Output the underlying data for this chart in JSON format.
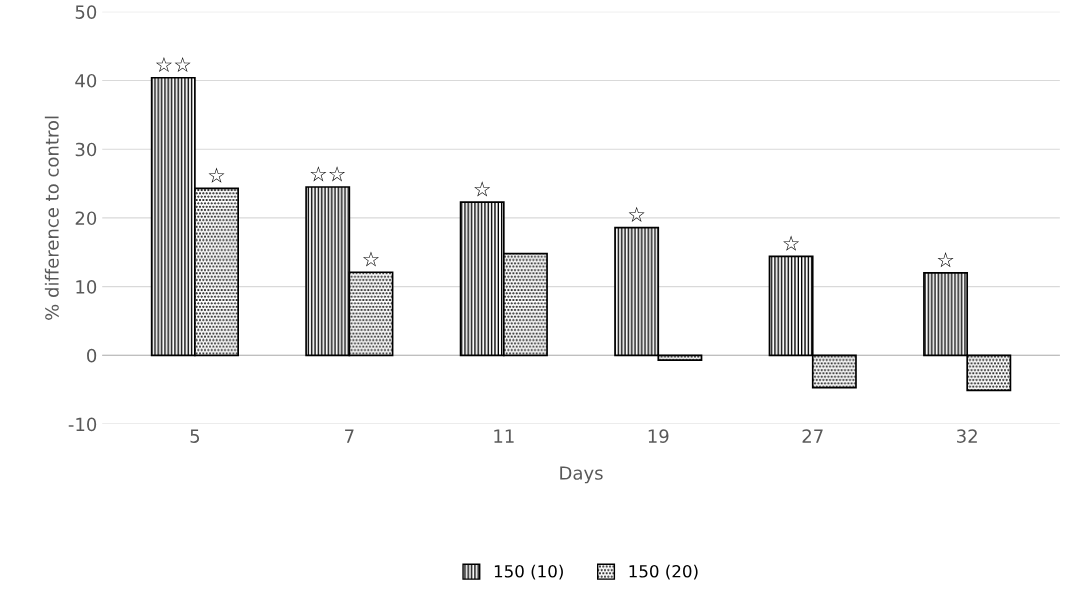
{
  "chart_data": {
    "type": "bar",
    "xlabel": "Days",
    "ylabel": "% difference to control",
    "categories": [
      "5",
      "7",
      "11",
      "19",
      "27",
      "32"
    ],
    "series": [
      {
        "name": "150 (10)",
        "color": "#000000",
        "values": [
          40.4,
          24.5,
          22.3,
          18.6,
          14.4,
          12.0
        ]
      },
      {
        "name": "150 (20)",
        "color": "#000000",
        "values": [
          24.3,
          12.1,
          14.8,
          -0.7,
          -4.7,
          -5.1
        ]
      }
    ],
    "ylim": [
      -10,
      50
    ],
    "yticks": [
      -10,
      0,
      10,
      20,
      30,
      40,
      50
    ],
    "grid": "y",
    "legend": "bottom",
    "annotations": [
      {
        "text": "☆☆",
        "x": "5",
        "y": 40.4
      },
      {
        "text": "☆",
        "x": "5",
        "y": 24.3
      },
      {
        "text": "☆☆",
        "x": "7",
        "y": 24.5
      },
      {
        "text": "☆",
        "x": "7",
        "y": 12.1
      },
      {
        "text": "☆",
        "x": "11",
        "y": 22.3
      },
      {
        "text": "☆",
        "x": "19",
        "y": 18.6
      },
      {
        "text": "☆",
        "x": "27",
        "y": 14.4
      },
      {
        "text": "☆",
        "x": "32",
        "y": 12.0
      }
    ]
  }
}
